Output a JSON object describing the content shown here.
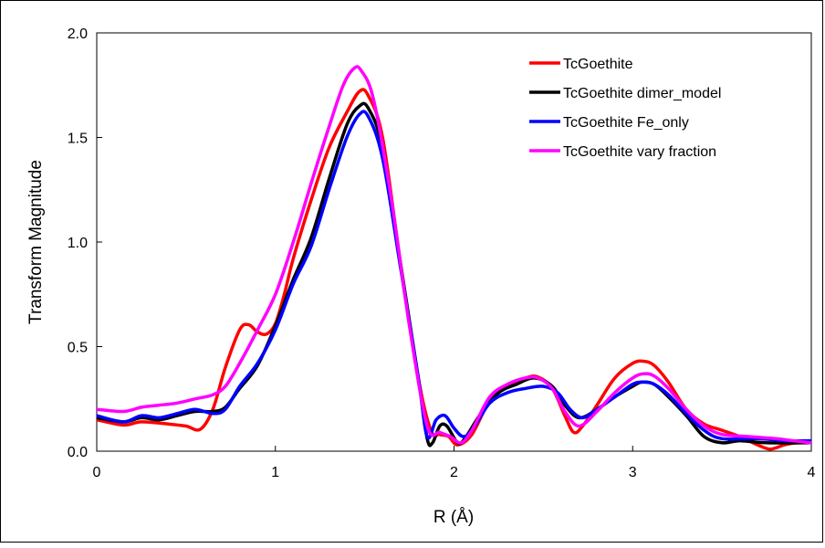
{
  "chart_data": {
    "type": "line",
    "title": "",
    "xlabel": "R (Å)",
    "ylabel": "Transform Magnitude",
    "xlim": [
      0,
      4
    ],
    "ylim": [
      0,
      2.0
    ],
    "x_ticks": [
      "0",
      "1",
      "2",
      "3",
      "4"
    ],
    "y_ticks": [
      "0.0",
      "0.5",
      "1.0",
      "1.5",
      "2.0"
    ],
    "grid": false,
    "legend_position": "top-right",
    "series": [
      {
        "name": "TcGoethite",
        "color": "#ff0000",
        "points": [
          [
            0,
            0.15
          ],
          [
            0.15,
            0.125
          ],
          [
            0.25,
            0.14
          ],
          [
            0.4,
            0.13
          ],
          [
            0.5,
            0.12
          ],
          [
            0.58,
            0.105
          ],
          [
            0.65,
            0.2
          ],
          [
            0.72,
            0.4
          ],
          [
            0.8,
            0.58
          ],
          [
            0.85,
            0.605
          ],
          [
            0.9,
            0.57
          ],
          [
            0.95,
            0.56
          ],
          [
            1.0,
            0.61
          ],
          [
            1.05,
            0.75
          ],
          [
            1.1,
            0.92
          ],
          [
            1.2,
            1.2
          ],
          [
            1.3,
            1.45
          ],
          [
            1.4,
            1.62
          ],
          [
            1.47,
            1.72
          ],
          [
            1.52,
            1.7
          ],
          [
            1.6,
            1.5
          ],
          [
            1.7,
            0.9
          ],
          [
            1.8,
            0.35
          ],
          [
            1.87,
            0.1
          ],
          [
            1.92,
            0.08
          ],
          [
            1.97,
            0.07
          ],
          [
            2.02,
            0.03
          ],
          [
            2.1,
            0.08
          ],
          [
            2.2,
            0.24
          ],
          [
            2.3,
            0.31
          ],
          [
            2.4,
            0.35
          ],
          [
            2.47,
            0.355
          ],
          [
            2.55,
            0.3
          ],
          [
            2.62,
            0.17
          ],
          [
            2.67,
            0.09
          ],
          [
            2.72,
            0.12
          ],
          [
            2.8,
            0.22
          ],
          [
            2.9,
            0.35
          ],
          [
            3.0,
            0.42
          ],
          [
            3.06,
            0.43
          ],
          [
            3.12,
            0.41
          ],
          [
            3.2,
            0.33
          ],
          [
            3.3,
            0.2
          ],
          [
            3.4,
            0.13
          ],
          [
            3.5,
            0.1
          ],
          [
            3.6,
            0.07
          ],
          [
            3.7,
            0.03
          ],
          [
            3.77,
            0.01
          ],
          [
            3.85,
            0.03
          ],
          [
            3.92,
            0.04
          ],
          [
            4.0,
            0.04
          ]
        ]
      },
      {
        "name": "TcGoethite dimer_model",
        "color": "#000000",
        "points": [
          [
            0,
            0.16
          ],
          [
            0.15,
            0.14
          ],
          [
            0.25,
            0.16
          ],
          [
            0.35,
            0.15
          ],
          [
            0.45,
            0.17
          ],
          [
            0.55,
            0.19
          ],
          [
            0.65,
            0.19
          ],
          [
            0.72,
            0.21
          ],
          [
            0.8,
            0.3
          ],
          [
            0.9,
            0.41
          ],
          [
            1.0,
            0.6
          ],
          [
            1.1,
            0.82
          ],
          [
            1.2,
            1.02
          ],
          [
            1.3,
            1.3
          ],
          [
            1.4,
            1.56
          ],
          [
            1.47,
            1.65
          ],
          [
            1.52,
            1.64
          ],
          [
            1.6,
            1.45
          ],
          [
            1.7,
            0.9
          ],
          [
            1.8,
            0.35
          ],
          [
            1.85,
            0.06
          ],
          [
            1.88,
            0.04
          ],
          [
            1.92,
            0.12
          ],
          [
            1.96,
            0.12
          ],
          [
            2.02,
            0.04
          ],
          [
            2.06,
            0.06
          ],
          [
            2.15,
            0.18
          ],
          [
            2.25,
            0.28
          ],
          [
            2.35,
            0.32
          ],
          [
            2.45,
            0.35
          ],
          [
            2.55,
            0.31
          ],
          [
            2.62,
            0.22
          ],
          [
            2.7,
            0.16
          ],
          [
            2.8,
            0.2
          ],
          [
            2.9,
            0.26
          ],
          [
            3.0,
            0.31
          ],
          [
            3.05,
            0.33
          ],
          [
            3.12,
            0.32
          ],
          [
            3.2,
            0.26
          ],
          [
            3.3,
            0.17
          ],
          [
            3.4,
            0.07
          ],
          [
            3.5,
            0.04
          ],
          [
            3.6,
            0.05
          ],
          [
            3.75,
            0.04
          ],
          [
            4.0,
            0.04
          ]
        ]
      },
      {
        "name": "TcGoethite Fe_only",
        "color": "#0000ff",
        "points": [
          [
            0,
            0.17
          ],
          [
            0.15,
            0.14
          ],
          [
            0.25,
            0.17
          ],
          [
            0.35,
            0.16
          ],
          [
            0.45,
            0.18
          ],
          [
            0.55,
            0.2
          ],
          [
            0.65,
            0.18
          ],
          [
            0.72,
            0.2
          ],
          [
            0.8,
            0.31
          ],
          [
            0.9,
            0.42
          ],
          [
            1.0,
            0.58
          ],
          [
            1.1,
            0.8
          ],
          [
            1.2,
            0.98
          ],
          [
            1.3,
            1.25
          ],
          [
            1.4,
            1.5
          ],
          [
            1.47,
            1.61
          ],
          [
            1.52,
            1.6
          ],
          [
            1.6,
            1.4
          ],
          [
            1.7,
            0.88
          ],
          [
            1.8,
            0.35
          ],
          [
            1.85,
            0.07
          ],
          [
            1.9,
            0.15
          ],
          [
            1.95,
            0.17
          ],
          [
            2.0,
            0.11
          ],
          [
            2.05,
            0.07
          ],
          [
            2.1,
            0.1
          ],
          [
            2.2,
            0.23
          ],
          [
            2.3,
            0.28
          ],
          [
            2.4,
            0.3
          ],
          [
            2.5,
            0.31
          ],
          [
            2.58,
            0.28
          ],
          [
            2.65,
            0.2
          ],
          [
            2.72,
            0.16
          ],
          [
            2.8,
            0.2
          ],
          [
            2.9,
            0.26
          ],
          [
            3.0,
            0.32
          ],
          [
            3.06,
            0.33
          ],
          [
            3.12,
            0.32
          ],
          [
            3.2,
            0.27
          ],
          [
            3.3,
            0.18
          ],
          [
            3.4,
            0.1
          ],
          [
            3.5,
            0.06
          ],
          [
            3.7,
            0.06
          ],
          [
            3.85,
            0.05
          ],
          [
            4.0,
            0.05
          ]
        ]
      },
      {
        "name": "TcGoethite vary fraction",
        "color": "#ff00ff",
        "points": [
          [
            0,
            0.2
          ],
          [
            0.15,
            0.19
          ],
          [
            0.25,
            0.21
          ],
          [
            0.35,
            0.22
          ],
          [
            0.45,
            0.23
          ],
          [
            0.55,
            0.25
          ],
          [
            0.65,
            0.27
          ],
          [
            0.72,
            0.31
          ],
          [
            0.8,
            0.42
          ],
          [
            0.9,
            0.58
          ],
          [
            1.0,
            0.75
          ],
          [
            1.1,
            1.0
          ],
          [
            1.2,
            1.28
          ],
          [
            1.3,
            1.55
          ],
          [
            1.38,
            1.75
          ],
          [
            1.44,
            1.83
          ],
          [
            1.48,
            1.82
          ],
          [
            1.55,
            1.68
          ],
          [
            1.65,
            1.2
          ],
          [
            1.75,
            0.6
          ],
          [
            1.85,
            0.12
          ],
          [
            1.92,
            0.09
          ],
          [
            1.98,
            0.07
          ],
          [
            2.04,
            0.04
          ],
          [
            2.1,
            0.1
          ],
          [
            2.2,
            0.26
          ],
          [
            2.3,
            0.32
          ],
          [
            2.4,
            0.35
          ],
          [
            2.47,
            0.35
          ],
          [
            2.55,
            0.3
          ],
          [
            2.62,
            0.19
          ],
          [
            2.7,
            0.12
          ],
          [
            2.8,
            0.19
          ],
          [
            2.9,
            0.28
          ],
          [
            3.0,
            0.35
          ],
          [
            3.06,
            0.37
          ],
          [
            3.12,
            0.36
          ],
          [
            3.2,
            0.3
          ],
          [
            3.3,
            0.2
          ],
          [
            3.4,
            0.12
          ],
          [
            3.5,
            0.08
          ],
          [
            3.65,
            0.07
          ],
          [
            3.8,
            0.06
          ],
          [
            3.9,
            0.05
          ],
          [
            4.0,
            0.04
          ]
        ]
      }
    ]
  }
}
